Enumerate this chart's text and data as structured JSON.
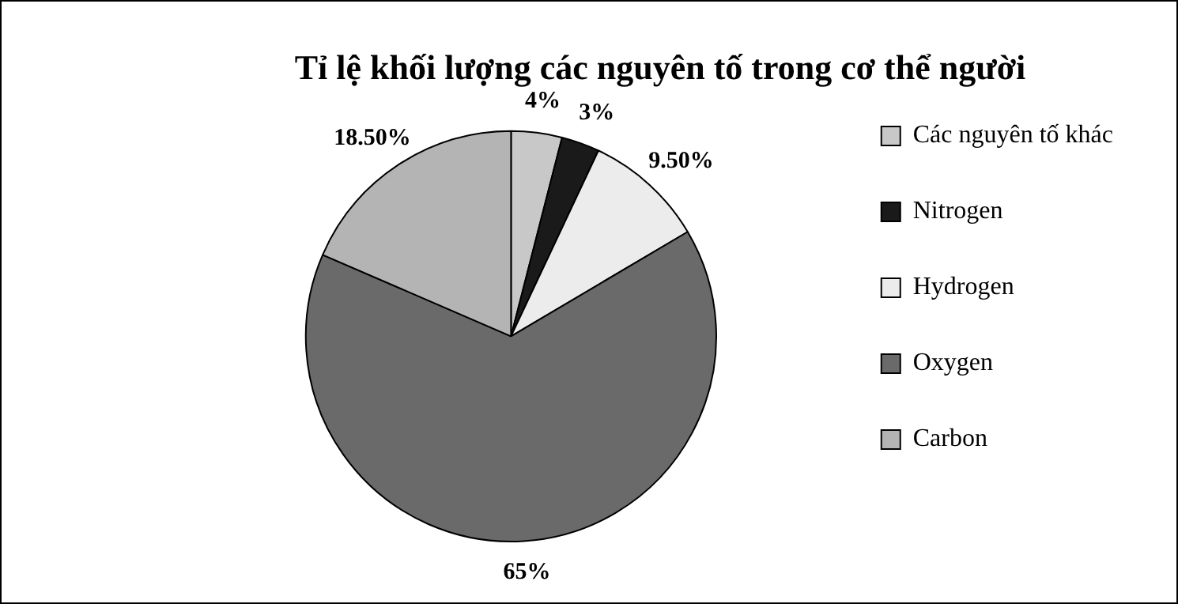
{
  "chart_data": {
    "type": "pie",
    "title": "Tỉ lệ khối lượng các nguyên tố trong cơ thể người",
    "categories": [
      "Các nguyên tố khác",
      "Nitrogen",
      "Hydrogen",
      "Oxygen",
      "Carbon"
    ],
    "values": [
      4,
      3,
      9.5,
      65,
      18.5
    ],
    "colors": [
      "#c8c8c8",
      "#1a1a1a",
      "#ececec",
      "#6a6a6a",
      "#b4b4b4"
    ],
    "value_labels": [
      "4%",
      "3%",
      "9.50%",
      "65%",
      "18.50%"
    ],
    "legend": "right"
  }
}
